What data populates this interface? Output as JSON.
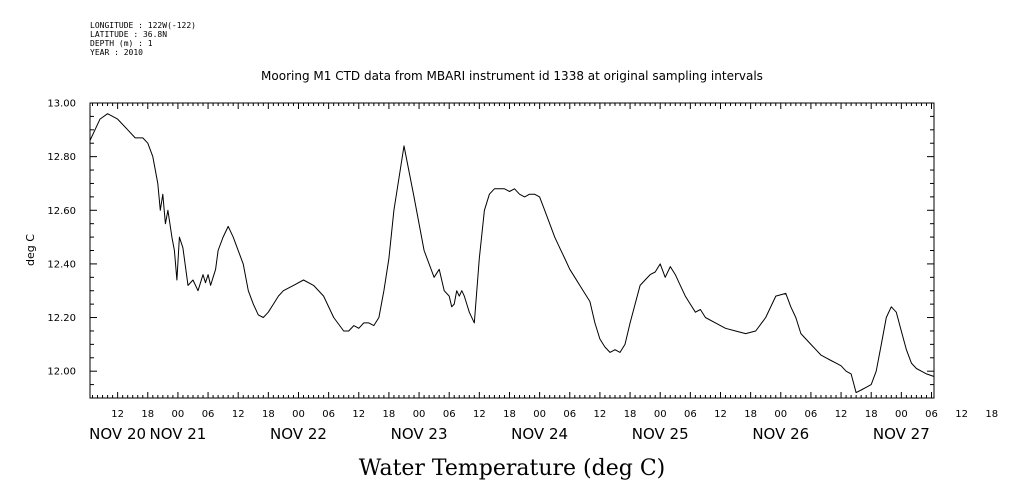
{
  "header_info": {
    "longitude": "LONGITUDE : 122W(-122)",
    "latitude": "LATITUDE : 36.8N",
    "depth": "DEPTH (m) : 1",
    "year": "YEAR : 2010"
  },
  "chart_data": {
    "type": "line",
    "title": "Mooring M1 CTD data from MBARI instrument id 1338 at original sampling intervals",
    "xlabel": "Water Temperature (deg C)",
    "ylabel": "deg C",
    "ylim": [
      11.9,
      13.0
    ],
    "yticks": [
      "12.00",
      "12.20",
      "12.40",
      "12.60",
      "12.80",
      "13.00"
    ],
    "x_unit": "hours since Nov 20 00:00 (2010)",
    "xlim": [
      6.5,
      174.5
    ],
    "hour_tick_labels": [
      "12",
      "18",
      "00",
      "06",
      "12",
      "18",
      "00",
      "06",
      "12",
      "18",
      "00",
      "06",
      "12",
      "18",
      "00",
      "06",
      "12",
      "18",
      "00",
      "06",
      "12",
      "18",
      "00",
      "06",
      "12",
      "18",
      "00",
      "06",
      "12",
      "18",
      "00",
      "06"
    ],
    "day_labels": [
      "NOV 20",
      "NOV 21",
      "NOV 22",
      "NOV 23",
      "NOV 24",
      "NOV 25",
      "NOV 26",
      "NOV 27"
    ],
    "grid": false,
    "series": [
      {
        "color": "#000000",
        "x": [
          6.5,
          7.5,
          8.5,
          10,
          12,
          14,
          15.5,
          17,
          18,
          19,
          20,
          20.5,
          21,
          21.5,
          22,
          22.8,
          23.3,
          23.8,
          24.3,
          25,
          26,
          27,
          28,
          28.5,
          29,
          29.5,
          30,
          30.5,
          31,
          31.5,
          32,
          33,
          34,
          35,
          37,
          38,
          39,
          40,
          41,
          42,
          43,
          44,
          45,
          47,
          49,
          51,
          53,
          55,
          57,
          58,
          59,
          60,
          61,
          62,
          63,
          64,
          65,
          66,
          67,
          69,
          71,
          73,
          75,
          76,
          77,
          78,
          78.5,
          79,
          79.5,
          80,
          80.5,
          81,
          81.5,
          82,
          83,
          84,
          85,
          86,
          87,
          88,
          89,
          90,
          91,
          92,
          93,
          94,
          95,
          96,
          97,
          98,
          99,
          100,
          101,
          102,
          103,
          104,
          106,
          107,
          108,
          109,
          110,
          111,
          112,
          113,
          114,
          115,
          116,
          117,
          118,
          119,
          120,
          121,
          122,
          123,
          124,
          125,
          126,
          127,
          128,
          129,
          131,
          133,
          135,
          137,
          139,
          141,
          143,
          145,
          146,
          147,
          148,
          149,
          150,
          151,
          152,
          153,
          154,
          155,
          156,
          157,
          158,
          159,
          160,
          161,
          162,
          163,
          164,
          165,
          166,
          167,
          168,
          169,
          170,
          171,
          172,
          173,
          174.5
        ],
        "y": [
          12.86,
          12.9,
          12.94,
          12.96,
          12.94,
          12.9,
          12.87,
          12.87,
          12.85,
          12.8,
          12.7,
          12.6,
          12.66,
          12.55,
          12.6,
          12.5,
          12.45,
          12.34,
          12.5,
          12.46,
          12.32,
          12.34,
          12.3,
          12.33,
          12.36,
          12.33,
          12.36,
          12.32,
          12.35,
          12.38,
          12.45,
          12.5,
          12.54,
          12.5,
          12.4,
          12.3,
          12.25,
          12.21,
          12.2,
          12.22,
          12.25,
          12.28,
          12.3,
          12.32,
          12.34,
          12.32,
          12.28,
          12.2,
          12.15,
          12.15,
          12.17,
          12.16,
          12.18,
          12.18,
          12.17,
          12.2,
          12.3,
          12.42,
          12.6,
          12.84,
          12.65,
          12.45,
          12.35,
          12.38,
          12.3,
          12.28,
          12.24,
          12.25,
          12.3,
          12.28,
          12.3,
          12.28,
          12.25,
          12.22,
          12.18,
          12.42,
          12.6,
          12.66,
          12.68,
          12.68,
          12.68,
          12.67,
          12.68,
          12.66,
          12.65,
          12.66,
          12.66,
          12.65,
          12.6,
          12.55,
          12.5,
          12.46,
          12.42,
          12.38,
          12.35,
          12.32,
          12.26,
          12.18,
          12.12,
          12.09,
          12.07,
          12.08,
          12.07,
          12.1,
          12.18,
          12.25,
          12.32,
          12.34,
          12.36,
          12.37,
          12.4,
          12.35,
          12.39,
          12.36,
          12.32,
          12.28,
          12.25,
          12.22,
          12.23,
          12.2,
          12.18,
          12.16,
          12.15,
          12.14,
          12.15,
          12.2,
          12.28,
          12.29,
          12.24,
          12.2,
          12.14,
          12.12,
          12.1,
          12.08,
          12.06,
          12.05,
          12.04,
          12.03,
          12.02,
          12.0,
          11.99,
          11.92,
          11.93,
          11.94,
          11.95,
          12.0,
          12.1,
          12.2,
          12.24,
          12.22,
          12.15,
          12.08,
          12.03,
          12.01,
          12.0,
          11.99,
          11.98
        ]
      }
    ]
  }
}
